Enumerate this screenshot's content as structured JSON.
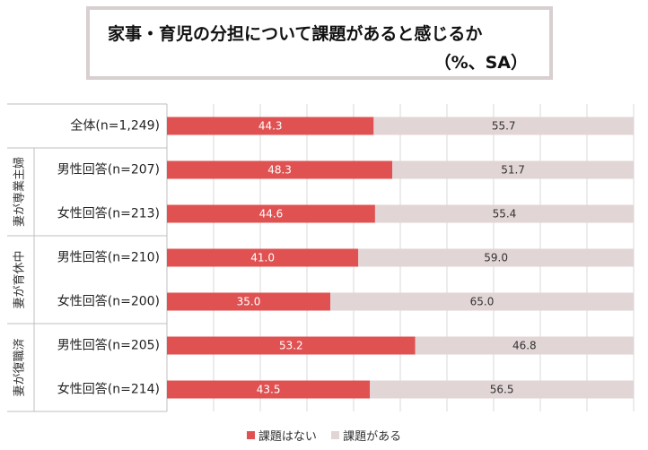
{
  "title": {
    "line1": "家事・育児の分担について課題があると感じるか",
    "line2": "（%、SA）"
  },
  "colors": {
    "series1": "#e05252",
    "series2": "#e2d5d5",
    "grid": "#d9d9d9",
    "separator": "#bfbfbf"
  },
  "chart_data": {
    "type": "bar",
    "orientation": "horizontal",
    "stacked": true,
    "xlim": [
      0,
      100
    ],
    "grid": true,
    "categories": [
      "全体(n=1,249)",
      "男性回答(n=207)",
      "女性回答(n=213)",
      "男性回答(n=210)",
      "女性回答(n=200)",
      "男性回答(n=205)",
      "女性回答(n=214)"
    ],
    "groups": [
      {
        "label": "",
        "rows": [
          0
        ]
      },
      {
        "label": "妻が専業主婦",
        "rows": [
          1,
          2
        ]
      },
      {
        "label": "妻が育休中",
        "rows": [
          3,
          4
        ]
      },
      {
        "label": "妻が復職済",
        "rows": [
          5,
          6
        ]
      }
    ],
    "series": [
      {
        "name": "課題はない",
        "values": [
          44.3,
          48.3,
          44.6,
          41.0,
          35.0,
          53.2,
          43.5
        ],
        "labels": [
          "44.3",
          "48.3",
          "44.6",
          "41.0",
          "35.0",
          "53.2",
          "43.5"
        ]
      },
      {
        "name": "課題がある",
        "values": [
          55.7,
          51.7,
          55.4,
          59.0,
          65.0,
          46.8,
          56.5
        ],
        "labels": [
          "55.7",
          "51.7",
          "55.4",
          "59.0",
          "65.0",
          "46.8",
          "56.5"
        ]
      }
    ],
    "legend_position": "bottom"
  }
}
